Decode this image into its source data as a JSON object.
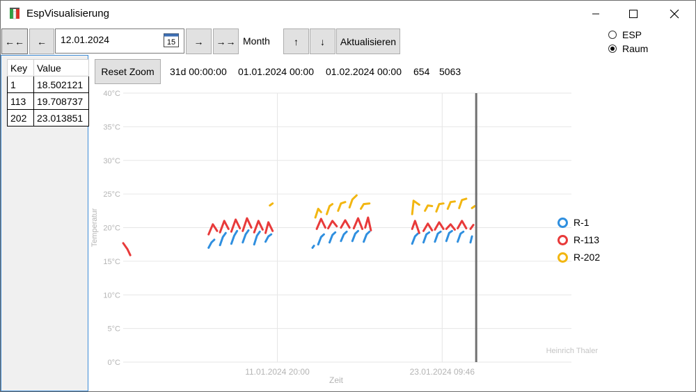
{
  "window": {
    "title": "EspVisualisierung",
    "controls": {
      "minimize": "─",
      "maximize": "☐",
      "close": "✕"
    }
  },
  "toolbar": {
    "first_label": "←←",
    "prev_label": "←",
    "date_value": "12.01.2024",
    "calendar_day": "15",
    "next_label": "→",
    "last_label": "→→",
    "period_label": "Month",
    "up_label": "↑",
    "down_label": "↓",
    "refresh_label": "Aktualisieren"
  },
  "mode": {
    "options": [
      {
        "label": "ESP",
        "selected": false
      },
      {
        "label": "Raum",
        "selected": true
      }
    ]
  },
  "table": {
    "headers": [
      "Key",
      "Value"
    ],
    "rows": [
      {
        "key": "1",
        "value": "18.502121"
      },
      {
        "key": "113",
        "value": "19.708737"
      },
      {
        "key": "202",
        "value": "23.013851"
      }
    ]
  },
  "info": {
    "reset_label": "Reset Zoom",
    "duration": "31d 00:00:00",
    "start": "01.01.2024 00:00",
    "end": "01.02.2024 00:00",
    "count_a": "654",
    "count_b": "5063"
  },
  "colors": {
    "r1": "#2f8fdf",
    "r113": "#e83a3a",
    "r202": "#f2b611",
    "cursor": "#707070",
    "grid": "#e6e6e6",
    "axis_text": "#b4b4b4"
  },
  "chart_data": {
    "type": "line",
    "xlabel": "Zeit",
    "ylabel": "Temperatur",
    "watermark": "Heinrich Thaler",
    "ylim": [
      0,
      40
    ],
    "y_ticks": [
      "0°C",
      "5°C",
      "10°C",
      "15°C",
      "20°C",
      "25°C",
      "30°C",
      "35°C",
      "40°C"
    ],
    "y_tick_values": [
      0,
      5,
      10,
      15,
      20,
      25,
      30,
      35,
      40
    ],
    "xlim": [
      "2024-01-01 00:00",
      "2024-02-01 00:00"
    ],
    "x_ticks": [
      "11.01.2024 20:00",
      "23.01.2024 09:46"
    ],
    "x_tick_days": [
      10.83,
      22.41
    ],
    "cursor_day": 24.8,
    "legend": [
      "R-1",
      "R-113",
      "R-202"
    ],
    "series": [
      {
        "name": "R-1",
        "color": "#2f8fdf",
        "segments": [
          [
            [
              6.0,
              17.0
            ],
            [
              6.2,
              17.8
            ],
            [
              6.4,
              18.2
            ]
          ],
          [
            [
              6.8,
              17.4
            ],
            [
              7.0,
              18.6
            ],
            [
              7.2,
              19.2
            ]
          ],
          [
            [
              7.6,
              17.6
            ],
            [
              7.8,
              18.8
            ],
            [
              8.0,
              19.5
            ]
          ],
          [
            [
              8.4,
              17.8
            ],
            [
              8.6,
              19.0
            ],
            [
              8.8,
              19.6
            ]
          ],
          [
            [
              9.2,
              17.5
            ],
            [
              9.4,
              18.8
            ],
            [
              9.6,
              19.4
            ]
          ],
          [
            [
              10.0,
              17.9
            ],
            [
              10.2,
              18.7
            ],
            [
              10.4,
              19.0
            ]
          ],
          [
            [
              13.3,
              17.0
            ],
            [
              13.4,
              17.3
            ]
          ],
          [
            [
              13.7,
              17.5
            ],
            [
              13.9,
              18.6
            ],
            [
              14.1,
              19.0
            ]
          ],
          [
            [
              14.5,
              17.8
            ],
            [
              14.7,
              18.9
            ],
            [
              14.9,
              19.3
            ]
          ],
          [
            [
              15.3,
              18.0
            ],
            [
              15.5,
              19.0
            ],
            [
              15.7,
              19.4
            ]
          ],
          [
            [
              16.1,
              18.0
            ],
            [
              16.3,
              19.1
            ],
            [
              16.5,
              19.5
            ]
          ],
          [
            [
              16.9,
              17.9
            ],
            [
              17.1,
              19.0
            ],
            [
              17.3,
              19.4
            ]
          ],
          [
            [
              20.3,
              17.6
            ],
            [
              20.5,
              18.7
            ],
            [
              20.7,
              19.1
            ]
          ],
          [
            [
              21.1,
              17.8
            ],
            [
              21.3,
              19.0
            ],
            [
              21.5,
              19.3
            ]
          ],
          [
            [
              21.9,
              17.9
            ],
            [
              22.1,
              19.1
            ],
            [
              22.3,
              19.4
            ]
          ],
          [
            [
              22.7,
              18.0
            ],
            [
              22.9,
              19.2
            ],
            [
              23.1,
              19.5
            ]
          ],
          [
            [
              23.5,
              17.9
            ],
            [
              23.7,
              19.1
            ],
            [
              23.9,
              19.4
            ]
          ],
          [
            [
              24.4,
              17.8
            ],
            [
              24.5,
              18.7
            ]
          ]
        ]
      },
      {
        "name": "R-113",
        "color": "#e83a3a",
        "segments": [
          [
            [
              0.0,
              17.7
            ],
            [
              0.3,
              16.8
            ],
            [
              0.5,
              15.9
            ]
          ],
          [
            [
              6.0,
              19.0
            ],
            [
              6.3,
              20.5
            ],
            [
              6.6,
              19.5
            ]
          ],
          [
            [
              6.8,
              19.3
            ],
            [
              7.1,
              21.0
            ],
            [
              7.4,
              19.8
            ]
          ],
          [
            [
              7.6,
              19.4
            ],
            [
              7.9,
              21.2
            ],
            [
              8.2,
              19.9
            ]
          ],
          [
            [
              8.4,
              19.5
            ],
            [
              8.7,
              21.4
            ],
            [
              9.0,
              20.0
            ]
          ],
          [
            [
              9.2,
              19.3
            ],
            [
              9.5,
              21.0
            ],
            [
              9.8,
              19.7
            ]
          ],
          [
            [
              10.0,
              19.2
            ],
            [
              10.2,
              20.8
            ],
            [
              10.5,
              19.5
            ]
          ],
          [
            [
              13.6,
              19.8
            ],
            [
              13.9,
              21.3
            ],
            [
              14.2,
              20.0
            ]
          ],
          [
            [
              14.4,
              19.9
            ],
            [
              14.7,
              21.0
            ],
            [
              15.0,
              20.2
            ]
          ],
          [
            [
              15.3,
              20.0
            ],
            [
              15.6,
              21.1
            ],
            [
              15.9,
              20.0
            ]
          ],
          [
            [
              16.2,
              19.9
            ],
            [
              16.5,
              21.4
            ],
            [
              16.8,
              19.8
            ]
          ],
          [
            [
              17.0,
              20.0
            ],
            [
              17.2,
              21.5
            ],
            [
              17.4,
              19.6
            ]
          ],
          [
            [
              20.3,
              19.8
            ],
            [
              20.5,
              21.0
            ],
            [
              20.8,
              19.2
            ]
          ],
          [
            [
              21.1,
              19.5
            ],
            [
              21.4,
              20.6
            ],
            [
              21.7,
              19.6
            ]
          ],
          [
            [
              21.9,
              19.7
            ],
            [
              22.2,
              20.8
            ],
            [
              22.5,
              19.8
            ]
          ],
          [
            [
              22.7,
              19.8
            ],
            [
              23.0,
              20.5
            ],
            [
              23.3,
              19.7
            ]
          ],
          [
            [
              23.5,
              19.9
            ],
            [
              23.8,
              21.0
            ],
            [
              24.1,
              19.9
            ]
          ],
          [
            [
              24.4,
              19.8
            ],
            [
              24.6,
              20.4
            ]
          ]
        ]
      },
      {
        "name": "R-202",
        "color": "#f2b611",
        "segments": [
          [
            [
              10.3,
              23.3
            ],
            [
              10.5,
              23.6
            ]
          ],
          [
            [
              13.5,
              21.5
            ],
            [
              13.7,
              22.8
            ],
            [
              13.9,
              22.3
            ]
          ],
          [
            [
              14.3,
              22.0
            ],
            [
              14.5,
              23.2
            ],
            [
              14.7,
              23.5
            ]
          ],
          [
            [
              15.1,
              22.5
            ],
            [
              15.3,
              23.6
            ],
            [
              15.6,
              23.8
            ]
          ],
          [
            [
              15.9,
              23.0
            ],
            [
              16.1,
              24.2
            ],
            [
              16.4,
              24.8
            ]
          ],
          [
            [
              16.7,
              22.8
            ],
            [
              16.9,
              23.5
            ],
            [
              17.3,
              23.6
            ]
          ],
          [
            [
              20.3,
              22.0
            ],
            [
              20.4,
              24.0
            ],
            [
              20.8,
              23.4
            ]
          ],
          [
            [
              21.2,
              22.5
            ],
            [
              21.4,
              23.3
            ],
            [
              21.7,
              23.2
            ]
          ],
          [
            [
              22.0,
              22.4
            ],
            [
              22.2,
              23.5
            ],
            [
              22.5,
              23.6
            ]
          ],
          [
            [
              22.8,
              22.8
            ],
            [
              23.0,
              23.8
            ],
            [
              23.3,
              23.9
            ]
          ],
          [
            [
              23.6,
              22.9
            ],
            [
              23.8,
              24.1
            ],
            [
              24.1,
              24.3
            ]
          ],
          [
            [
              24.5,
              22.9
            ],
            [
              24.7,
              23.2
            ]
          ]
        ]
      }
    ]
  }
}
